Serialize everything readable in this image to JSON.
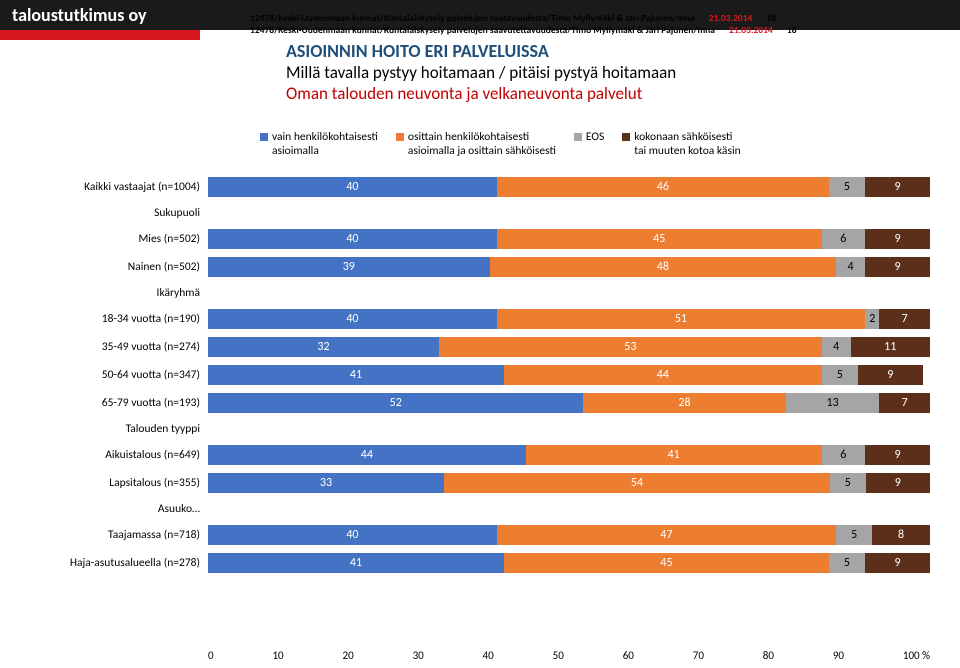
{
  "header": {
    "company": "taloustutkimus oy"
  },
  "crumbs": [
    {
      "text": "12478/Keski-Uudenmaan kunnat/Kuntalaiskysely palvelujen saatavuudesta/Timo Myllymäki & Jari Pajunen/mna",
      "date": "21.03.2014",
      "page": "18"
    },
    {
      "text": "12478/Keski-Uudenmaan kunnat/Kuntalaiskysely palvelujen saavutettavuudesta/Timo Myllymäki & Jari Pajunen/mna",
      "date": "21.03.2014",
      "page": "18"
    }
  ],
  "titles": {
    "t1": "ASIOINNIN HOITO ERI PALVELUISSA",
    "t2": "Millä tavalla pystyy hoitamaan / pitäisi pystyä hoitamaan",
    "t3": "Oman talouden neuvonta ja velkaneuvonta palvelut"
  },
  "legend": [
    {
      "label": "vain henkilökohtaisesti\nasioimalla",
      "color": "#4472c4"
    },
    {
      "label": "osittain henkilökohtaisesti\nasioimalla ja osittain sähköisesti",
      "color": "#ed7d31"
    },
    {
      "label": "EOS",
      "color": "#a5a5a5"
    },
    {
      "label": "kokonaan sähköisesti\ntai muuten kotoa käsin",
      "color": "#5b2f1a"
    }
  ],
  "colors": [
    "#4472c4",
    "#ed7d31",
    "#a5a5a5",
    "#5b2f1a"
  ],
  "rows": [
    {
      "label": "Kaikki vastaajat  (n=1004)",
      "values": [
        40,
        46,
        5,
        9
      ],
      "showlabel": [
        true,
        true,
        true,
        true
      ]
    },
    {
      "label": "Sukupuoli",
      "section": true
    },
    {
      "label": "Mies (n=502)",
      "values": [
        40,
        45,
        6,
        9
      ],
      "showlabel": [
        true,
        true,
        true,
        true
      ]
    },
    {
      "label": "Nainen (n=502)",
      "values": [
        39,
        48,
        4,
        9
      ],
      "showlabel": [
        true,
        true,
        true,
        true
      ]
    },
    {
      "label": "Ikäryhmä",
      "section": true
    },
    {
      "label": "18-34 vuotta (n=190)",
      "values": [
        40,
        51,
        2,
        7
      ],
      "showlabel": [
        true,
        true,
        true,
        true
      ]
    },
    {
      "label": "35-49 vuotta (n=274)",
      "values": [
        32,
        53,
        4,
        11
      ],
      "showlabel": [
        true,
        true,
        true,
        true
      ]
    },
    {
      "label": "50-64 vuotta (n=347)",
      "values": [
        41,
        44,
        5,
        9
      ],
      "showlabel": [
        true,
        true,
        true,
        true
      ]
    },
    {
      "label": "65-79 vuotta (n=193)",
      "values": [
        52,
        28,
        13,
        7
      ],
      "showlabel": [
        true,
        true,
        true,
        true
      ]
    },
    {
      "label": "Talouden tyyppi",
      "section": true
    },
    {
      "label": "Aikuistalous (n=649)",
      "values": [
        44,
        41,
        6,
        9
      ],
      "showlabel": [
        true,
        true,
        true,
        true
      ]
    },
    {
      "label": "Lapsitalous (n=355)",
      "values": [
        33,
        54,
        5,
        9
      ],
      "showlabel": [
        true,
        true,
        true,
        true
      ]
    },
    {
      "label": "Asuuko…",
      "section": true
    },
    {
      "label": "Taajamassa (n=718)",
      "values": [
        40,
        47,
        5,
        8
      ],
      "showlabel": [
        true,
        true,
        true,
        true
      ]
    },
    {
      "label": "Haja-asutusalueella (n=278)",
      "values": [
        41,
        45,
        5,
        9
      ],
      "showlabel": [
        true,
        true,
        true,
        true
      ]
    }
  ],
  "axis": {
    "min": 0,
    "max": 100,
    "step": 10
  }
}
